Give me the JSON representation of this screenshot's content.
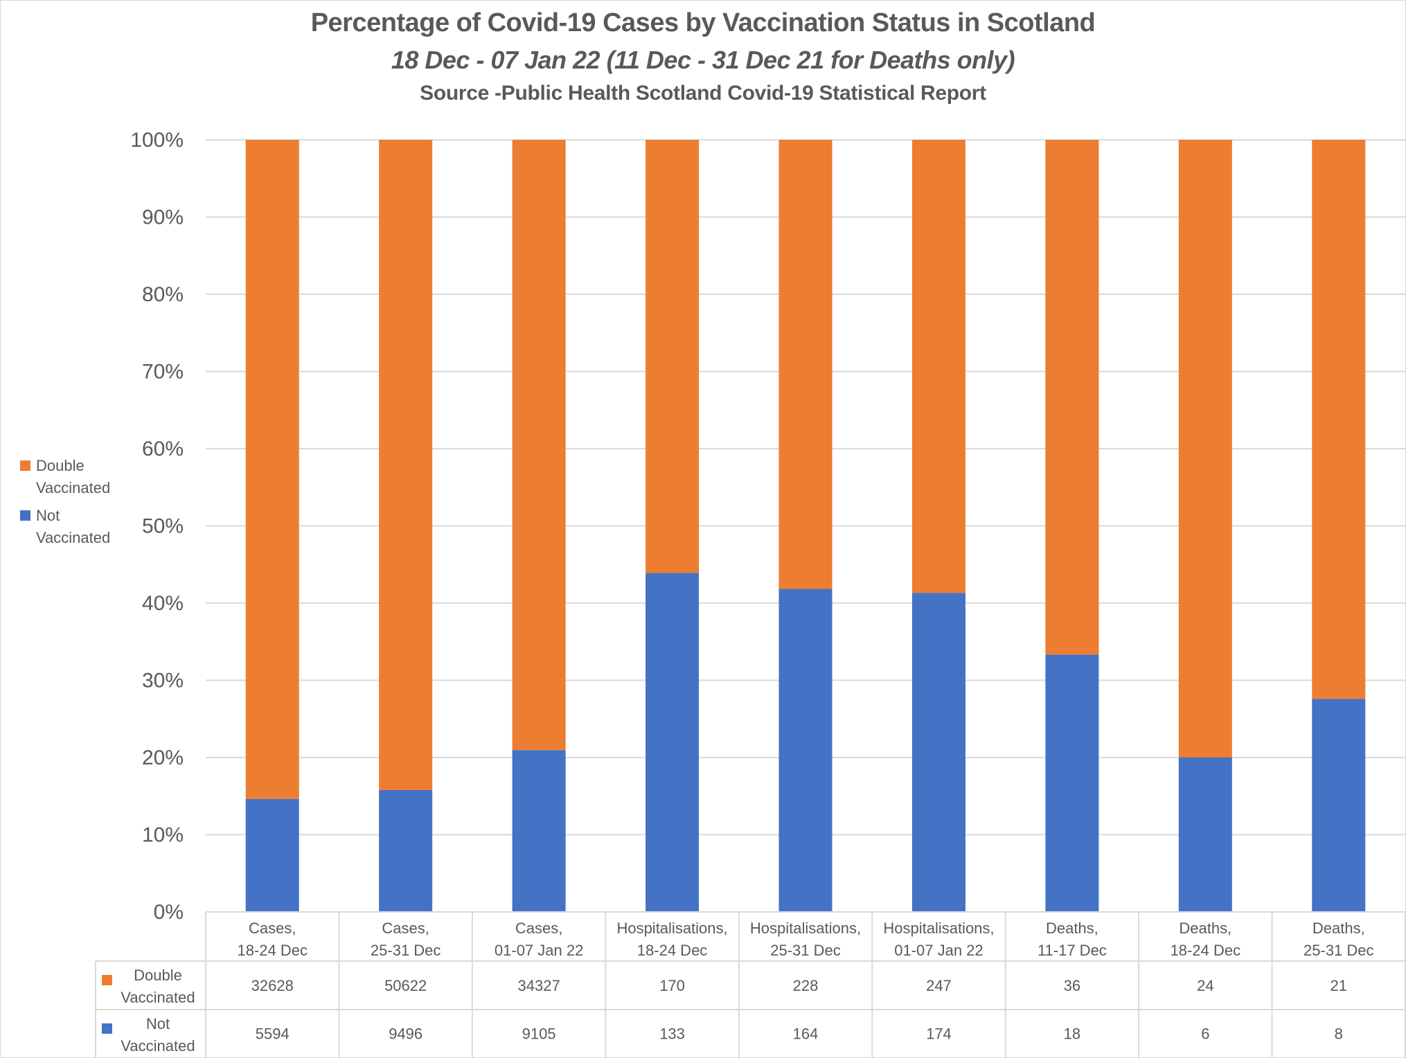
{
  "chart_data": {
    "type": "bar",
    "stacked": "percent",
    "title": "Percentage of Covid-19 Cases by Vaccination Status in Scotland",
    "subtitle": "18 Dec - 07 Jan 22 (11 Dec - 31 Dec 21 for Deaths only)",
    "source": "Source -Public Health Scotland  Covid-19 Statistical Report",
    "xlabel": "",
    "ylabel": "",
    "ylim": [
      0,
      100
    ],
    "yticks": [
      "0%",
      "10%",
      "20%",
      "30%",
      "40%",
      "50%",
      "60%",
      "70%",
      "80%",
      "90%",
      "100%"
    ],
    "grid": true,
    "legend_position": "left",
    "categories": [
      [
        "Cases,",
        "18-24 Dec"
      ],
      [
        "Cases,",
        "25-31 Dec"
      ],
      [
        "Cases,",
        "01-07 Jan 22"
      ],
      [
        "Hospitalisations,",
        "18-24 Dec"
      ],
      [
        "Hospitalisations,",
        "25-31 Dec"
      ],
      [
        "Hospitalisations,",
        "01-07 Jan 22"
      ],
      [
        "Deaths,",
        "11-17 Dec"
      ],
      [
        "Deaths,",
        "18-24 Dec"
      ],
      [
        "Deaths,",
        "25-31 Dec"
      ]
    ],
    "series": [
      {
        "name": "Not Vaccinated",
        "label_lines": [
          "Not",
          "Vaccinated"
        ],
        "color": "#4472c4",
        "values": [
          5594,
          9496,
          9105,
          133,
          164,
          174,
          18,
          6,
          8
        ]
      },
      {
        "name": "Double Vaccinated",
        "label_lines": [
          "Double",
          "Vaccinated"
        ],
        "color": "#ed7d31",
        "values": [
          32628,
          50622,
          34327,
          170,
          228,
          247,
          36,
          24,
          21
        ]
      }
    ],
    "legend_order": [
      1,
      0
    ],
    "table_order": [
      1,
      0
    ]
  }
}
